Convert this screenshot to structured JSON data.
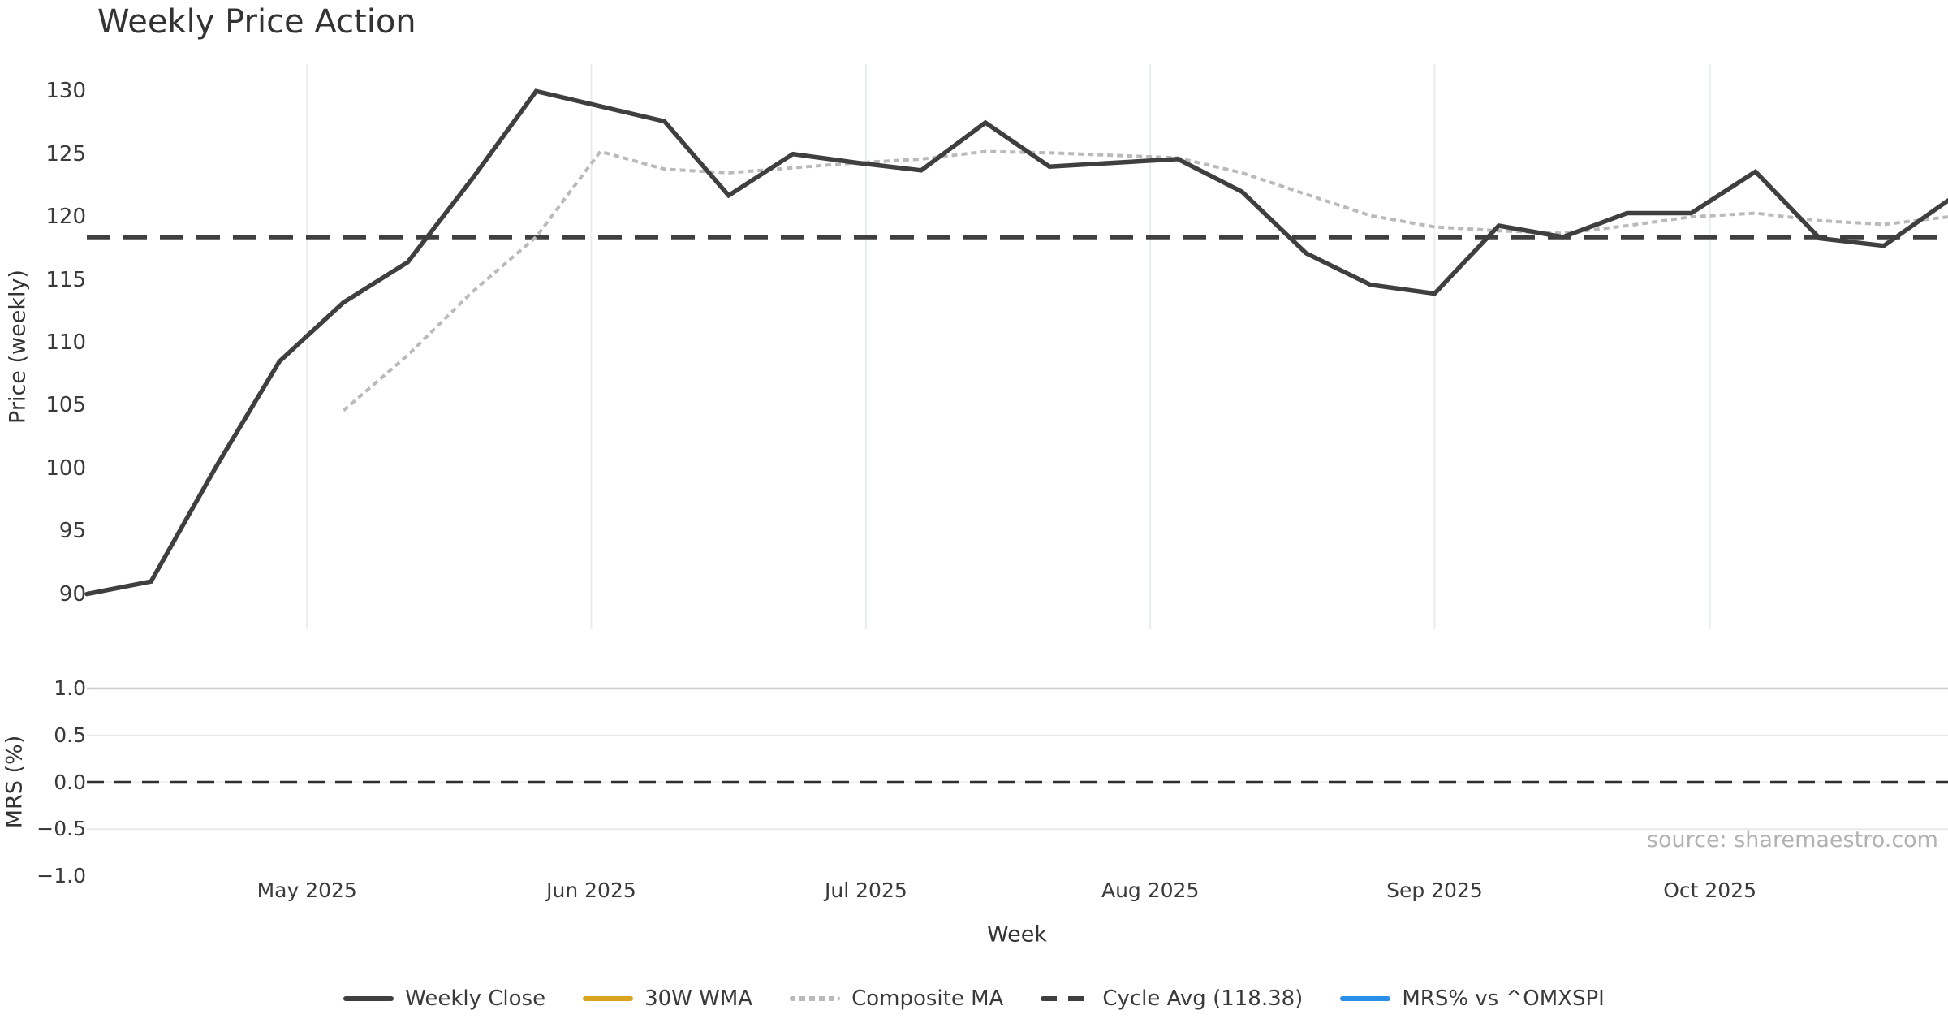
{
  "page": {
    "title": "Weekly Price Action",
    "source_note": "source: sharemaestro.com"
  },
  "axes": {
    "price_label": "Price (weekly)",
    "mrs_label": "MRS (%)",
    "week_label": "Week"
  },
  "colors": {
    "weekly_close": "#3f3f3f",
    "wma_30w": "#d9a521",
    "composite_ma": "#bababa",
    "cycle_avg": "#3f3f3f",
    "mrs_line": "#2b8ee8",
    "grid_vertical": "#e9edf0",
    "grid_horizontal": "#e6e9eb",
    "grid_horizontal_top": "#c9ced2",
    "zero_dash": "#303030",
    "text": "#3a3a3a",
    "source_text": "#b2b2b2"
  },
  "legend": {
    "items": [
      {
        "label": "Weekly Close",
        "color": "#3f3f3f",
        "style": "solid"
      },
      {
        "label": "30W WMA",
        "color": "#d9a521",
        "style": "solid"
      },
      {
        "label": "Composite MA",
        "color": "#bababa",
        "style": "dotted"
      },
      {
        "label": "Cycle Avg (118.38)",
        "color": "#3f3f3f",
        "style": "dashed"
      },
      {
        "label": "MRS% vs ^OMXSPI",
        "color": "#2b8ee8",
        "style": "solid"
      }
    ]
  },
  "chart_data": [
    {
      "type": "line",
      "panel": "price",
      "title": "Weekly Price Action",
      "xlabel": "",
      "ylabel": "Price (weekly)",
      "x_unit": "weekly points (index 0-29)",
      "n_points": 30,
      "yticks": [
        130,
        125,
        120,
        115,
        110,
        105,
        100,
        95,
        90
      ],
      "ylim": [
        87.2,
        132.15
      ],
      "grid": "vertical-month-lines",
      "legend_position": "bottom-center-outside",
      "month_ticks": [
        {
          "label": "May 2025",
          "week": 3.43
        },
        {
          "label": "Jun 2025",
          "week": 7.86
        },
        {
          "label": "Jul 2025",
          "week": 12.14
        },
        {
          "label": "Aug 2025",
          "week": 16.57
        },
        {
          "label": "Sep 2025",
          "week": 21.0
        },
        {
          "label": "Oct 2025",
          "week": 25.29
        }
      ],
      "series": [
        {
          "name": "Weekly Close",
          "style": "solid",
          "color": "#3f3f3f",
          "values": [
            90.0,
            91.0,
            100.0,
            108.5,
            113.2,
            116.4,
            123.0,
            130.0,
            128.8,
            127.6,
            121.7,
            125.0,
            124.3,
            123.7,
            127.5,
            124.0,
            124.3,
            124.6,
            122.0,
            117.1,
            114.6,
            113.9,
            119.3,
            118.4,
            120.3,
            120.3,
            123.6,
            118.3,
            117.7,
            121.3
          ]
        },
        {
          "name": "30W WMA",
          "style": "solid",
          "color": "#d9a521",
          "values": []
        },
        {
          "name": "Composite MA",
          "style": "dotted",
          "color": "#bababa",
          "values": [
            null,
            null,
            null,
            null,
            104.6,
            109.0,
            114.0,
            118.4,
            125.2,
            123.8,
            123.5,
            123.9,
            124.3,
            124.6,
            125.2,
            125.1,
            124.9,
            124.7,
            123.5,
            121.8,
            120.1,
            119.2,
            118.9,
            118.7,
            119.3,
            120.0,
            120.3,
            119.7,
            119.4,
            120.0
          ]
        },
        {
          "name": "Cycle Avg",
          "style": "dashed",
          "color": "#3f3f3f",
          "constant": 118.38
        }
      ]
    },
    {
      "type": "line",
      "panel": "mrs",
      "xlabel": "Week",
      "ylabel": "MRS (%)",
      "yticks": [
        1.0,
        0.5,
        0.0,
        -0.5,
        -1.0
      ],
      "ytick_labels": [
        "1.0",
        "0.5",
        "0.0",
        "−0.5",
        "−1.0"
      ],
      "ylim": [
        -1.05,
        1.0
      ],
      "grid": "horizontal-lines",
      "series": [
        {
          "name": "MRS% vs ^OMXSPI",
          "style": "solid",
          "color": "#2b8ee8",
          "values": []
        },
        {
          "name": "Zero line",
          "style": "dashed",
          "color": "#303030",
          "constant": 0.0
        }
      ]
    }
  ]
}
